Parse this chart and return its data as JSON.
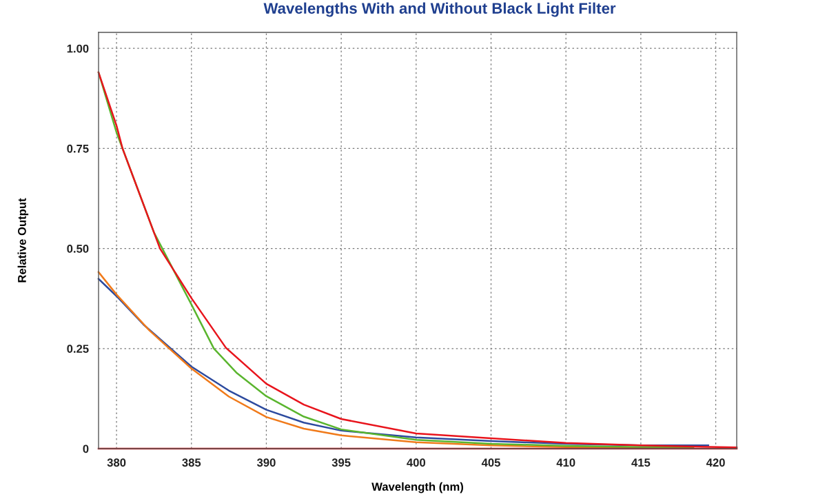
{
  "chart_data": {
    "type": "line",
    "title": "Wavelengths With and Without Black Light Filter",
    "xlabel": "Wavelength (nm)",
    "ylabel": "Relative Output",
    "xlim": [
      378.8,
      421.4
    ],
    "xticks": [
      380,
      385,
      390,
      395,
      400,
      405,
      410,
      415,
      420
    ],
    "ylim": [
      0,
      1.04
    ],
    "yticks": [
      {
        "value": 1.0,
        "label": "1.00"
      },
      {
        "value": 0.75,
        "label": "0.75"
      },
      {
        "value": 0.5,
        "label": "0.50"
      },
      {
        "value": 0.25,
        "label": "0.25"
      },
      0
    ],
    "grid": true,
    "legend": false,
    "marker": "none",
    "line_style": "solid",
    "series": [
      {
        "color": "#2c4a9e",
        "x": [
          378.8,
          380,
          381.8,
          385,
          387.5,
          390,
          392.5,
          395,
          400,
          405,
          410,
          415,
          419.5
        ],
        "values": [
          0.424,
          0.381,
          0.31,
          0.205,
          0.145,
          0.097,
          0.065,
          0.045,
          0.028,
          0.019,
          0.012,
          0.008,
          0.008
        ]
      },
      {
        "color": "#f07a1a",
        "x": [
          378.8,
          380,
          382.2,
          385,
          387.5,
          390,
          392.5,
          395,
          400,
          405,
          410,
          415,
          418.5
        ],
        "values": [
          0.441,
          0.385,
          0.295,
          0.2,
          0.13,
          0.079,
          0.05,
          0.033,
          0.016,
          0.008,
          0.004,
          0.003,
          0.003
        ]
      },
      {
        "color": "#5ab52e",
        "x": [
          378.8,
          380,
          382.5,
          385,
          386.5,
          388,
          390,
          392.5,
          395,
          400,
          405,
          410,
          415,
          418.5
        ],
        "values": [
          0.94,
          0.79,
          0.54,
          0.36,
          0.25,
          0.19,
          0.131,
          0.08,
          0.048,
          0.022,
          0.012,
          0.007,
          0.004,
          0.003
        ]
      },
      {
        "color": "#e8141c",
        "x": [
          378.8,
          380,
          380.4,
          382.9,
          385,
          387.3,
          390,
          392.5,
          395,
          400,
          405,
          410,
          415,
          421.4
        ],
        "values": [
          0.94,
          0.807,
          0.75,
          0.5,
          0.376,
          0.252,
          0.162,
          0.11,
          0.074,
          0.038,
          0.026,
          0.014,
          0.008,
          0.003
        ]
      },
      {
        "color": "#e8141c",
        "x": [
          378.8,
          421.4
        ],
        "values": [
          0,
          0
        ]
      }
    ]
  }
}
